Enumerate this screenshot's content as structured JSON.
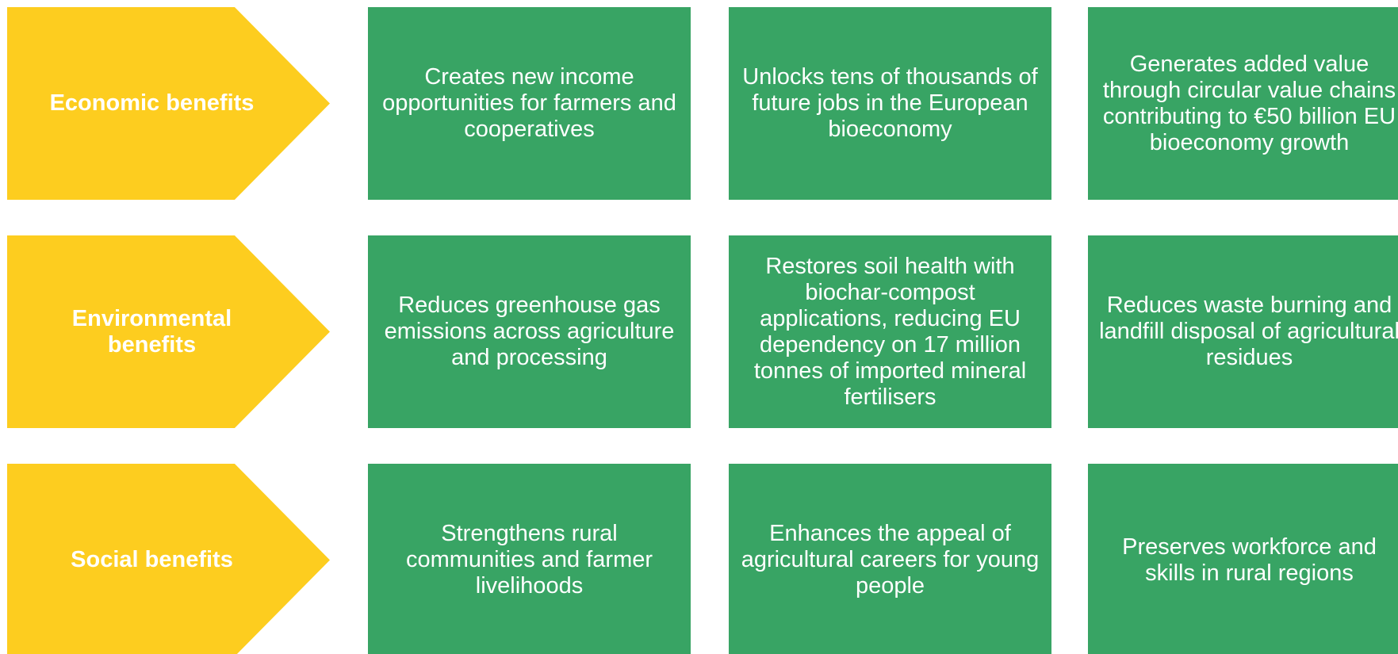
{
  "rows": [
    {
      "label": "Economic benefits",
      "cells": [
        "Creates new income opportunities for farmers and cooperatives",
        "Unlocks tens of thousands of future jobs in the European bioeconomy",
        "Generates added value through circular value chains contributing to €50 billion EU bioeconomy growth"
      ]
    },
    {
      "label": "Environmental benefits",
      "cells": [
        "Reduces greenhouse gas emissions across agriculture and processing",
        "Restores soil health with biochar-compost applications, reducing EU dependency on 17 million tonnes of imported mineral fertilisers",
        "Reduces waste burning and landfill disposal of agricultural residues"
      ]
    },
    {
      "label": "Social benefits",
      "cells": [
        "Strengthens rural communities and farmer livelihoods",
        "Enhances the appeal of agricultural careers for young people",
        "Preserves workforce and skills in rural regions"
      ]
    }
  ]
}
